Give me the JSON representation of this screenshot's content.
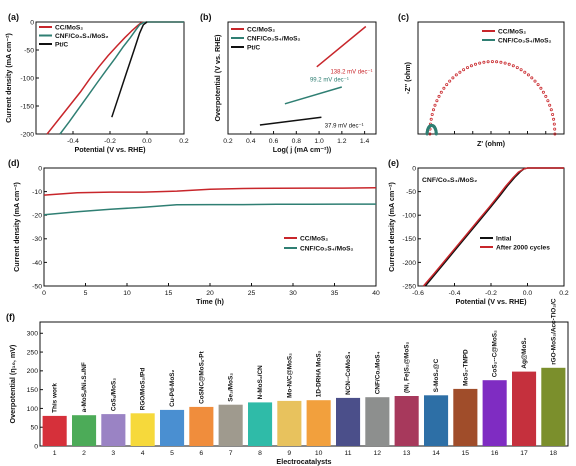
{
  "colors": {
    "cc": "#c8262b",
    "cnf": "#2f7f73",
    "ptc": "#111111",
    "axis": "#111111",
    "bars": [
      "#d6303a",
      "#4cab58",
      "#9a83c4",
      "#f6d93b",
      "#4a8fd1",
      "#f08d3c",
      "#9f9a8e",
      "#2fbba8",
      "#e8c25d",
      "#f2a03d",
      "#4b4f8a",
      "#8d8f8e",
      "#a7395c",
      "#2d6fa6",
      "#a04d2a",
      "#7f2cc2",
      "#c5303d",
      "#7b8f2c"
    ]
  },
  "chart_data": [
    {
      "id": "a",
      "panel_label": "(a)",
      "type": "line",
      "xlabel": "Potential (V vs. RHE)",
      "ylabel": "Current density (mA cm⁻²)",
      "xlim": [
        -0.6,
        0.2
      ],
      "ylim": [
        -200,
        0
      ],
      "xticks": [
        "-0.4",
        "-0.2",
        "0.0",
        "0.2"
      ],
      "xtick_values": [
        -0.4,
        -0.2,
        0.0,
        0.2
      ],
      "yticks": [
        "-200",
        "-150",
        "-100",
        "-50",
        "0"
      ],
      "ytick_values": [
        -200,
        -150,
        -100,
        -50,
        0
      ],
      "legend": [
        "CC/MoS₂",
        "CNF/Co₃S₄/MoS₂",
        "Pt/C"
      ],
      "series": [
        {
          "name": "CC/MoS₂",
          "color_key": "cc",
          "x": [
            -0.54,
            -0.48,
            -0.42,
            -0.36,
            -0.31,
            -0.26,
            -0.21,
            -0.16,
            -0.12,
            -0.08,
            -0.05,
            -0.03,
            0.0,
            0.05,
            0.1,
            0.15,
            0.2
          ],
          "y": [
            -200,
            -175,
            -150,
            -125,
            -102,
            -80,
            -60,
            -42,
            -28,
            -15,
            -6,
            -1,
            0,
            0,
            0,
            0,
            0
          ]
        },
        {
          "name": "CNF/Co₃S₄/MoS₂",
          "color_key": "cnf",
          "x": [
            -0.47,
            -0.42,
            -0.37,
            -0.32,
            -0.27,
            -0.22,
            -0.17,
            -0.13,
            -0.09,
            -0.06,
            -0.04,
            -0.02,
            0.0,
            0.05,
            0.1,
            0.2
          ],
          "y": [
            -200,
            -178,
            -155,
            -132,
            -109,
            -86,
            -64,
            -45,
            -28,
            -14,
            -5,
            -1,
            0,
            0,
            0,
            0
          ]
        },
        {
          "name": "Pt/C",
          "color_key": "ptc",
          "x": [
            -0.19,
            -0.15,
            -0.11,
            -0.07,
            -0.04,
            -0.02,
            0.0
          ],
          "y": [
            -170,
            -130,
            -90,
            -50,
            -20,
            -5,
            0
          ]
        }
      ]
    },
    {
      "id": "b",
      "panel_label": "(b)",
      "type": "line",
      "xlabel": "Log( j (mA cm⁻²))",
      "ylabel": "Overpotential (V vs. RHE)",
      "xlim": [
        0.2,
        1.5
      ],
      "ylim": [
        0,
        1
      ],
      "xticks": [
        "0.2",
        "0.4",
        "0.6",
        "0.8",
        "1.0",
        "1.2",
        "1.4"
      ],
      "xtick_values": [
        0.2,
        0.4,
        0.6,
        0.8,
        1.0,
        1.2,
        1.4
      ],
      "legend": [
        "CC/MoS₂",
        "CNF/Co₃S₄/MoS₂",
        "Pt/C"
      ],
      "annotations": [
        "138.2 mV dec⁻¹",
        "99.2 mV dec⁻¹",
        "37.9 mV dec⁻¹"
      ],
      "series": [
        {
          "name": "CC/MoS₂",
          "color_key": "cc",
          "x": [
            0.98,
            1.41
          ],
          "y": [
            0.6,
            0.96
          ]
        },
        {
          "name": "CNF/Co₃S₄/MoS₂",
          "color_key": "cnf",
          "x": [
            0.7,
            1.2
          ],
          "y": [
            0.27,
            0.42
          ]
        },
        {
          "name": "Pt/C",
          "color_key": "ptc",
          "x": [
            0.48,
            1.02
          ],
          "y": [
            0.08,
            0.15
          ]
        }
      ]
    },
    {
      "id": "c",
      "panel_label": "(c)",
      "type": "scatter",
      "xlabel": "Z' (ohm)",
      "ylabel": "-Z'' (ohm)",
      "xlim": [
        0,
        16
      ],
      "ylim": [
        0,
        6.5
      ],
      "xticks": [
        "0",
        "2",
        "4",
        "6",
        "8",
        "10",
        "12",
        "14",
        "16"
      ],
      "xtick_values": [
        0,
        2,
        4,
        6,
        8,
        10,
        12,
        14,
        16
      ],
      "yticks": [
        "0",
        "1",
        "2",
        "3",
        "4",
        "5",
        "6"
      ],
      "ytick_values": [
        0,
        1,
        2,
        3,
        4,
        5,
        6
      ],
      "legend": [
        "CC/MoS₂",
        "CNF/Co₃S₄/MoS₂"
      ],
      "series": [
        {
          "name": "CC/MoS₂",
          "color_key": "cc",
          "arc": {
            "x0": 1.3,
            "x1": 15.0,
            "height": 4.2
          }
        },
        {
          "name": "CNF/Co₃S₄/MoS₂",
          "color_key": "cnf",
          "arc": {
            "x0": 1.0,
            "x1": 2.0,
            "height": 0.5
          }
        }
      ]
    },
    {
      "id": "d",
      "panel_label": "(d)",
      "type": "line",
      "xlabel": "Time (h)",
      "ylabel": "Current density (mA cm⁻²)",
      "xlim": [
        0,
        40
      ],
      "ylim": [
        -50,
        0
      ],
      "xticks": [
        "0",
        "5",
        "10",
        "15",
        "20",
        "25",
        "30",
        "35",
        "40"
      ],
      "xtick_values": [
        0,
        5,
        10,
        15,
        20,
        25,
        30,
        35,
        40
      ],
      "yticks": [
        "-50",
        "-40",
        "-30",
        "-20",
        "-10",
        "0"
      ],
      "ytick_values": [
        -50,
        -40,
        -30,
        -20,
        -10,
        0
      ],
      "legend": [
        "CC/MoS₂",
        "CNF/Co₃S₄/MoS₂"
      ],
      "series": [
        {
          "name": "CC/MoS₂",
          "color_key": "cc",
          "x": [
            0,
            4,
            8,
            12,
            16,
            20,
            24,
            28,
            32,
            36,
            40
          ],
          "y": [
            -11.5,
            -10.5,
            -10.2,
            -10.2,
            -9.8,
            -9.0,
            -8.7,
            -8.6,
            -8.5,
            -8.5,
            -8.4
          ]
        },
        {
          "name": "CNF/Co₃S₄/MoS₂",
          "color_key": "cnf",
          "x": [
            0,
            4,
            8,
            12,
            16,
            20,
            24,
            28,
            32,
            36,
            40
          ],
          "y": [
            -19.8,
            -18.5,
            -17.5,
            -16.6,
            -15.6,
            -15.5,
            -15.5,
            -15.4,
            -15.4,
            -15.3,
            -15.3
          ]
        }
      ]
    },
    {
      "id": "e",
      "panel_label": "(e)",
      "type": "line",
      "title": "CNF/Co₃S₄/MoS₂",
      "xlabel": "Potential (V vs. RHE)",
      "ylabel": "Current density (mA cm⁻²)",
      "xlim": [
        -0.6,
        0.2
      ],
      "ylim": [
        -250,
        0
      ],
      "xticks": [
        "-0.6",
        "-0.4",
        "-0.2",
        "0.0",
        "0.2"
      ],
      "xtick_values": [
        -0.6,
        -0.4,
        -0.2,
        0.0,
        0.2
      ],
      "yticks": [
        "-250",
        "-200",
        "-150",
        "-100",
        "-50",
        "0"
      ],
      "ytick_values": [
        -250,
        -200,
        -150,
        -100,
        -50,
        0
      ],
      "legend": [
        "Intial",
        "After 2000 cycles"
      ],
      "series": [
        {
          "name": "Intial",
          "color_key": "ptc",
          "x": [
            -0.56,
            -0.5,
            -0.44,
            -0.38,
            -0.32,
            -0.26,
            -0.2,
            -0.15,
            -0.11,
            -0.07,
            -0.04,
            -0.02,
            0.0,
            0.1,
            0.2
          ],
          "y": [
            -250,
            -222,
            -194,
            -166,
            -138,
            -110,
            -82,
            -58,
            -38,
            -20,
            -8,
            -2,
            0,
            0,
            0
          ]
        },
        {
          "name": "After 2000 cycles",
          "color_key": "cc",
          "x": [
            -0.57,
            -0.51,
            -0.45,
            -0.39,
            -0.33,
            -0.27,
            -0.21,
            -0.16,
            -0.12,
            -0.08,
            -0.05,
            -0.02,
            0.0,
            0.1,
            0.2
          ],
          "y": [
            -250,
            -223,
            -195,
            -167,
            -139,
            -111,
            -83,
            -59,
            -39,
            -21,
            -9,
            -2,
            0,
            0,
            0
          ]
        }
      ]
    },
    {
      "id": "f",
      "panel_label": "(f)",
      "type": "bar",
      "xlabel": "Electrocatalysts",
      "ylabel": "Overpotential (η₁₀, mV)",
      "ylim": [
        0,
        330
      ],
      "yticks": [
        "0",
        "50",
        "100",
        "150",
        "200",
        "250",
        "300"
      ],
      "ytick_values": [
        0,
        50,
        100,
        150,
        200,
        250,
        300
      ],
      "categories": [
        "1",
        "2",
        "3",
        "4",
        "5",
        "6",
        "7",
        "8",
        "9",
        "10",
        "11",
        "12",
        "13",
        "14",
        "15",
        "16",
        "17",
        "18"
      ],
      "bar_labels": [
        "This work",
        "a-MoSₓ/Ni₃S₂/NF",
        "CoSₓ/MoS₂",
        "RGO/MoS₂/Pd",
        "Cu-Pd-MoS₂",
        "CoSNC@MoSₓ-Pt",
        "Se₂/MoS₂",
        "N-MoS₂/CN",
        "Mo-N/C@MoS₂",
        "1D-DRHA MoS₂",
        "NCN--CoMoS₄",
        "CNF/Co₂MoS₄",
        "(Ni, Fe)S₂@MoS₂",
        "S-MoS₂@C",
        "MoS₂-TMPD",
        "CoS₂--C@MoS₂",
        "Ag@MoS₂",
        "rGO-MoS₂/Acc-TiO₂/C"
      ],
      "values": [
        80,
        82,
        85,
        87,
        96,
        104,
        110,
        116,
        120,
        122,
        128,
        130,
        133,
        135,
        152,
        175,
        198,
        208
      ]
    }
  ]
}
